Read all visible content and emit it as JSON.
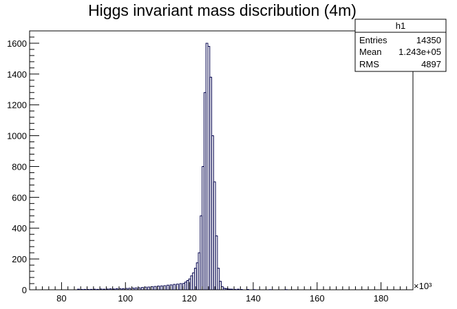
{
  "chart_data": {
    "type": "bar",
    "title": "Higgs invariant mass discribution (4m)",
    "x_exponent": "×10³",
    "xlim": [
      70,
      190
    ],
    "ylim": [
      0,
      1680
    ],
    "xticks": [
      "80",
      "100",
      "120",
      "140",
      "160",
      "180"
    ],
    "yticks": [
      "0",
      "200",
      "400",
      "600",
      "800",
      "1000",
      "1200",
      "1400",
      "1600"
    ],
    "bin_width": 0.6,
    "bins": [
      [
        85,
        4
      ],
      [
        86,
        2
      ],
      [
        87,
        3
      ],
      [
        88,
        2
      ],
      [
        89,
        3
      ],
      [
        90,
        4
      ],
      [
        91,
        3
      ],
      [
        92,
        5
      ],
      [
        93,
        4
      ],
      [
        94,
        5
      ],
      [
        95,
        6
      ],
      [
        96,
        5
      ],
      [
        97,
        7
      ],
      [
        98,
        8
      ],
      [
        99,
        7
      ],
      [
        100,
        9
      ],
      [
        101,
        10
      ],
      [
        102,
        11
      ],
      [
        103,
        12
      ],
      [
        104,
        13
      ],
      [
        105,
        15
      ],
      [
        106,
        17
      ],
      [
        107,
        18
      ],
      [
        108,
        20
      ],
      [
        109,
        22
      ],
      [
        110,
        24
      ],
      [
        111,
        25
      ],
      [
        112,
        27
      ],
      [
        113,
        30
      ],
      [
        114,
        32
      ],
      [
        115,
        35
      ],
      [
        116,
        37
      ],
      [
        117,
        40
      ],
      [
        118,
        42
      ],
      [
        118.6,
        50
      ],
      [
        119.2,
        60
      ],
      [
        119.8,
        70
      ],
      [
        120.4,
        90
      ],
      [
        121,
        110
      ],
      [
        121.6,
        140
      ],
      [
        122.2,
        175
      ],
      [
        122.8,
        240
      ],
      [
        123.4,
        480
      ],
      [
        124,
        800
      ],
      [
        124.6,
        1280
      ],
      [
        125.2,
        1600
      ],
      [
        125.8,
        1580
      ],
      [
        126.4,
        1380
      ],
      [
        127,
        1000
      ],
      [
        127.6,
        700
      ],
      [
        128.2,
        350
      ],
      [
        128.8,
        140
      ],
      [
        129.4,
        55
      ],
      [
        130,
        20
      ],
      [
        130.6,
        10
      ],
      [
        131.2,
        7
      ],
      [
        131.8,
        5
      ],
      [
        132.4,
        4
      ],
      [
        133,
        4
      ],
      [
        134,
        3
      ],
      [
        135,
        4
      ],
      [
        136,
        2
      ],
      [
        138,
        2
      ],
      [
        140,
        1
      ],
      [
        145,
        1
      ],
      [
        150,
        1
      ]
    ]
  },
  "stats_box": {
    "name": "h1",
    "rows": [
      {
        "label": "Entries",
        "value": "14350"
      },
      {
        "label": "Mean",
        "value": "1.243e+05"
      },
      {
        "label": "RMS",
        "value": "4897"
      }
    ]
  }
}
